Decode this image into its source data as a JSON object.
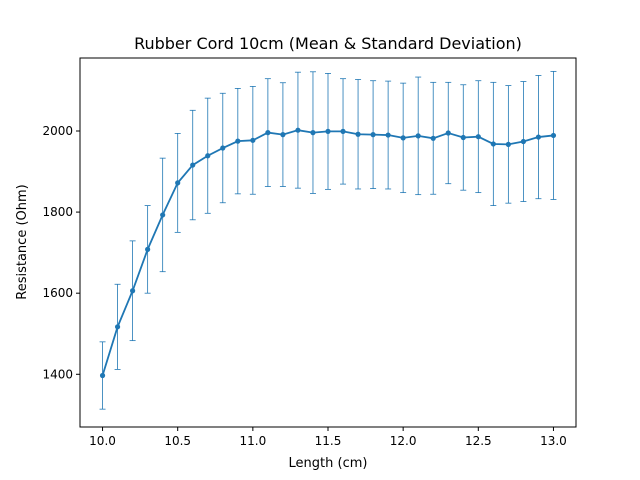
{
  "chart_data": {
    "type": "line",
    "title": "Rubber Cord 10cm (Mean & Standard Deviation)",
    "xlabel": "Length (cm)",
    "ylabel": "Resistance (Ohm)",
    "xlim": [
      9.85,
      13.15
    ],
    "ylim": [
      1270,
      2180
    ],
    "xticks": [
      "10.0",
      "10.5",
      "11.0",
      "11.5",
      "12.0",
      "12.5",
      "13.0"
    ],
    "yticks": [
      "1400",
      "1600",
      "1800",
      "2000"
    ],
    "grid": false,
    "color": "#1f77b4",
    "series": [
      {
        "x": [
          10.0,
          10.1,
          10.2,
          10.3,
          10.4,
          10.5,
          10.6,
          10.7,
          10.8,
          10.9,
          11.0,
          11.1,
          11.2,
          11.3,
          11.4,
          11.5,
          11.6,
          11.7,
          11.8,
          11.9,
          12.0,
          12.1,
          12.2,
          12.3,
          12.4,
          12.5,
          12.6,
          12.7,
          12.8,
          12.9,
          13.0
        ],
        "y": [
          1397,
          1517,
          1606,
          1708,
          1793,
          1872,
          1916,
          1939,
          1958,
          1975,
          1977,
          1996,
          1991,
          2002,
          1996,
          1999,
          1999,
          1992,
          1991,
          1990,
          1983,
          1988,
          1982,
          1995,
          1984,
          1986,
          1968,
          1967,
          1974,
          1985,
          1989
        ],
        "err": [
          83,
          105,
          123,
          108,
          140,
          122,
          135,
          142,
          135,
          130,
          133,
          133,
          128,
          143,
          150,
          143,
          130,
          135,
          133,
          133,
          135,
          145,
          138,
          125,
          130,
          138,
          152,
          145,
          148,
          152,
          158
        ]
      }
    ]
  }
}
